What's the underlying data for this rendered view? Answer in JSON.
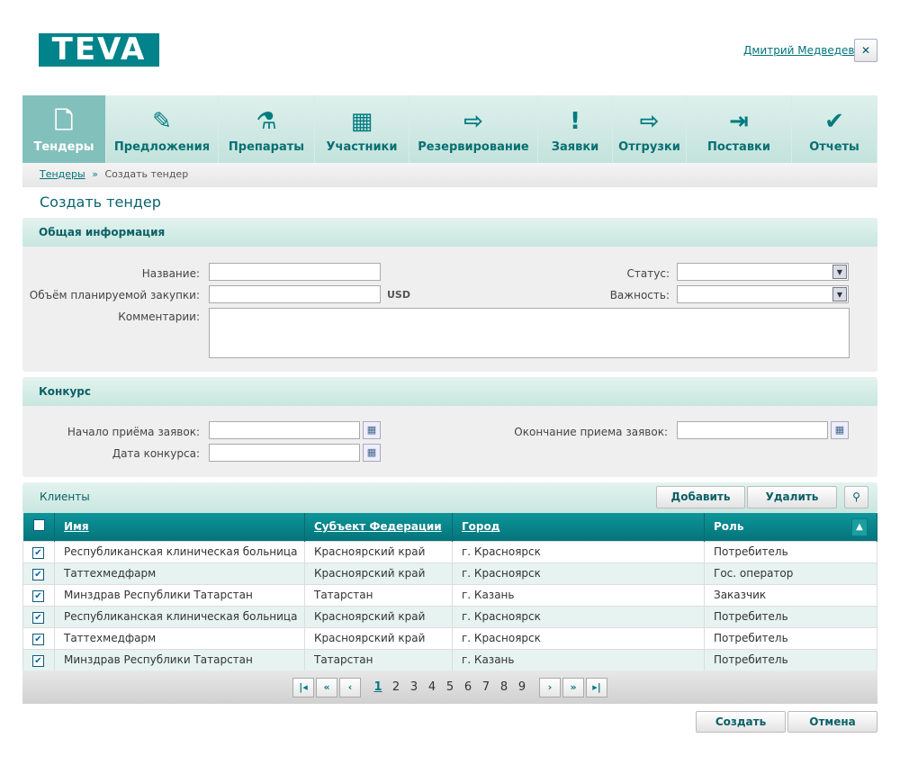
{
  "header": {
    "logo": "TEVA",
    "user": "Дмитрий Медведев",
    "close_icon": "close-icon"
  },
  "nav": [
    {
      "label": "Тендеры",
      "icon": "document-icon",
      "glyph": "🗋"
    },
    {
      "label": "Предложения",
      "icon": "document-edit-icon",
      "glyph": "✎"
    },
    {
      "label": "Препараты",
      "icon": "flask-icon",
      "glyph": "⚗"
    },
    {
      "label": "Участники",
      "icon": "building-icon",
      "glyph": "▦"
    },
    {
      "label": "Резервирование",
      "icon": "reserve-icon",
      "glyph": "⇨"
    },
    {
      "label": "Заявки",
      "icon": "speech-bubble-icon",
      "glyph": "!"
    },
    {
      "label": "Отгрузки",
      "icon": "export-icon",
      "glyph": "⇨"
    },
    {
      "label": "Поставки",
      "icon": "import-icon",
      "glyph": "⇥"
    },
    {
      "label": "Отчеты",
      "icon": "report-check-icon",
      "glyph": "✔"
    }
  ],
  "breadcrumb": {
    "parent": "Тендеры",
    "sep": "»",
    "current": "Создать тендер"
  },
  "page_title": "Создать тендер",
  "general": {
    "title": "Общая информация",
    "name_label": "Название:",
    "name_value": "",
    "volume_label": "Объём планируемой закупки:",
    "volume_value": "",
    "currency": "USD",
    "comments_label": "Комментарии:",
    "comments_value": "",
    "status_label": "Статус:",
    "status_value": "",
    "importance_label": "Важность:",
    "importance_value": ""
  },
  "contest": {
    "title": "Конкурс",
    "start_label": "Начало приёма заявок:",
    "date_label": "Дата конкурса:",
    "end_label": "Окончание приема заявок:"
  },
  "clients": {
    "title": "Клиенты",
    "add": "Добавить",
    "delete": "Удалить",
    "columns": [
      "Имя",
      "Субъект Федерации",
      "Город",
      "Роль"
    ],
    "rows": [
      [
        "Республиканская клиническая больница",
        "Красноярский край",
        "г. Красноярск",
        "Потребитель"
      ],
      [
        "Таттехмедфарм",
        "Красноярский край",
        "г. Красноярск",
        "Гос. оператор"
      ],
      [
        "Минздрав Республики Татарстан",
        "Татарстан",
        "г. Казань",
        "Заказчик"
      ],
      [
        "Республиканская клиническая больница",
        "Красноярский край",
        "г. Красноярск",
        "Потребитель"
      ],
      [
        "Таттехмедфарм",
        "Красноярский край",
        "г. Красноярск",
        "Потребитель"
      ],
      [
        "Минздрав Республики Татарстан",
        "Татарстан",
        "г. Казань",
        "Потребитель"
      ]
    ],
    "checked": [
      true,
      true,
      true,
      true,
      true,
      true
    ]
  },
  "pager": {
    "pages": [
      "1",
      "2",
      "3",
      "4",
      "5",
      "6",
      "7",
      "8",
      "9"
    ],
    "current": "1"
  },
  "actions": {
    "create": "Создать",
    "cancel": "Отмена"
  }
}
